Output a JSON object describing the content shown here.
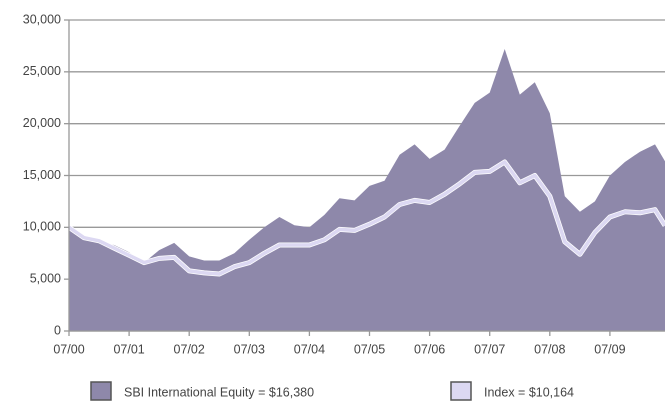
{
  "chart_data": {
    "type": "area",
    "x": [
      "07/00",
      "10/00",
      "01/01",
      "04/01",
      "07/01",
      "10/01",
      "01/02",
      "04/02",
      "07/02",
      "10/02",
      "01/03",
      "04/03",
      "07/03",
      "10/03",
      "01/04",
      "04/04",
      "07/04",
      "10/04",
      "01/05",
      "04/05",
      "07/05",
      "10/05",
      "01/06",
      "04/06",
      "07/06",
      "10/06",
      "01/07",
      "04/07",
      "07/07",
      "10/07",
      "01/08",
      "04/08",
      "07/08",
      "10/08",
      "01/09",
      "04/09",
      "07/09",
      "10/09",
      "01/10",
      "04/10",
      "06/10"
    ],
    "series": [
      {
        "name": "SBI International Equity = $16,380",
        "color": "#8e88aa",
        "fill": true,
        "values": [
          10000,
          9000,
          8600,
          8300,
          7600,
          6600,
          7800,
          8500,
          7200,
          6800,
          6800,
          7500,
          8800,
          10000,
          11000,
          10200,
          10000,
          11200,
          12800,
          12600,
          14000,
          14500,
          17000,
          18000,
          16600,
          17500,
          19800,
          22000,
          23000,
          27200,
          22800,
          24000,
          21000,
          13000,
          11500,
          12500,
          15000,
          16300,
          17300,
          18000,
          16380
        ]
      },
      {
        "name": "Index = $10,164",
        "color": "#dcd8f2",
        "fill": false,
        "values": [
          10000,
          9000,
          8700,
          8000,
          7300,
          6600,
          7000,
          7100,
          5800,
          5600,
          5500,
          6200,
          6600,
          7500,
          8300,
          8300,
          8300,
          8800,
          9800,
          9700,
          10300,
          11000,
          12200,
          12600,
          12400,
          13200,
          14200,
          15300,
          15400,
          16300,
          14300,
          15000,
          13000,
          8600,
          7400,
          9500,
          11000,
          11500,
          11400,
          11700,
          10164
        ]
      }
    ],
    "xlim": [
      "07/00",
      "06/10"
    ],
    "xticks": [
      "07/00",
      "07/01",
      "07/02",
      "07/03",
      "07/04",
      "07/05",
      "07/06",
      "07/07",
      "07/08",
      "07/09"
    ],
    "ylim": [
      0,
      30000
    ],
    "yticks": [
      0,
      {
        "value": 5000,
        "label": "5,000"
      },
      {
        "value": 10000,
        "label": "10,000"
      },
      {
        "value": 15000,
        "label": "15,000"
      },
      {
        "value": 20000,
        "label": "20,000"
      },
      {
        "value": 25000,
        "label": "25,000"
      },
      {
        "value": 30000,
        "label": "30,000"
      }
    ],
    "grid": true
  }
}
